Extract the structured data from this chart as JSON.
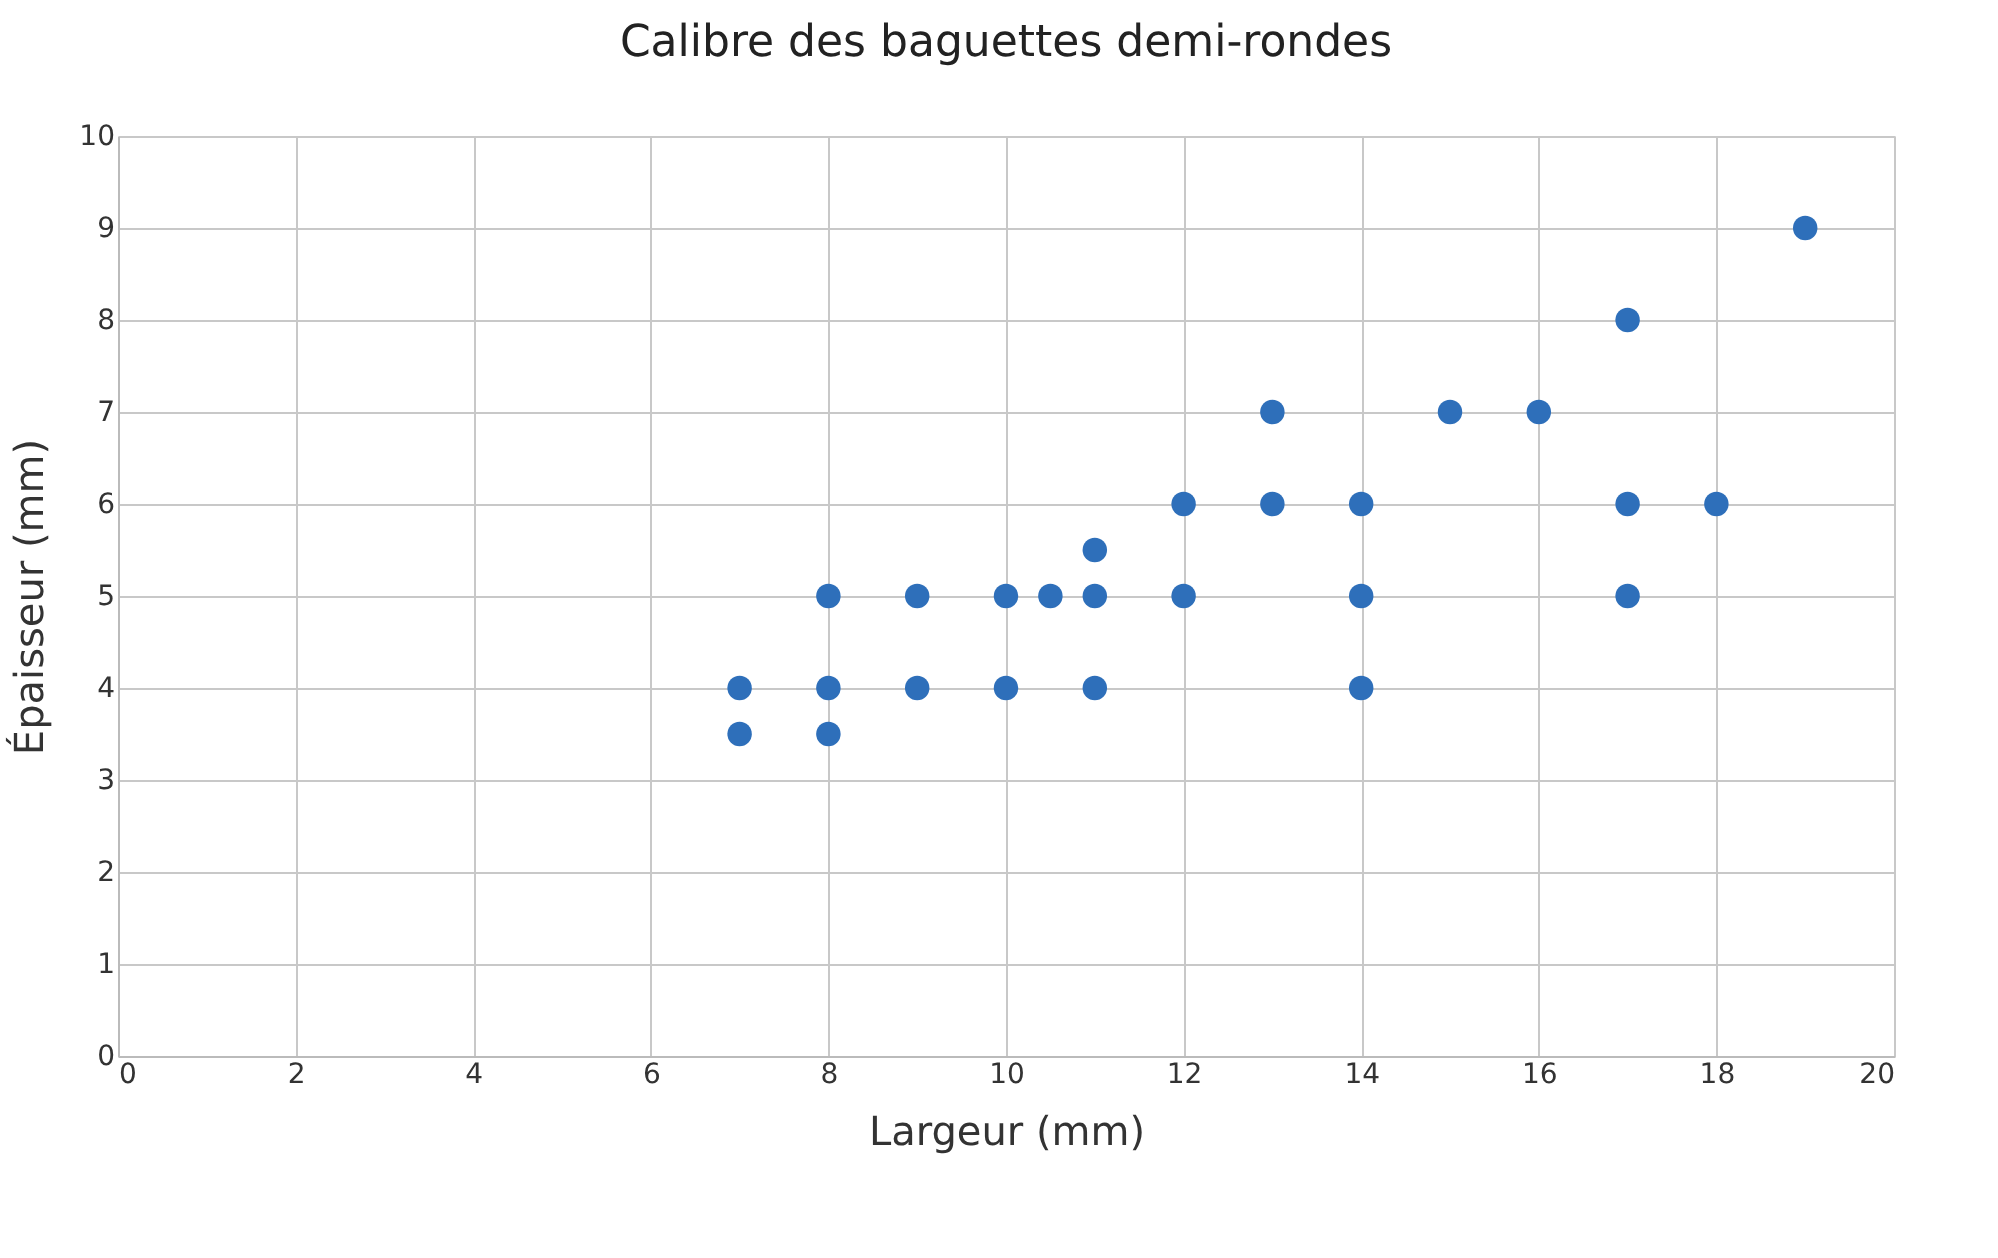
{
  "chart_data": {
    "type": "scatter",
    "title": "Calibre des baguettes demi-rondes",
    "xlabel": "Largeur (mm)",
    "ylabel": "Épaisseur (mm)",
    "x": [
      7,
      7,
      8,
      8,
      8,
      9,
      9,
      10,
      10,
      10.5,
      11,
      11,
      11,
      12,
      12,
      13,
      13,
      14,
      14,
      14,
      15,
      16,
      17,
      17,
      17,
      18,
      19
    ],
    "series": [
      {
        "color": "#2e6fba",
        "values": [
          4,
          3.5,
          5,
          4,
          3.5,
          5,
          4,
          5,
          4,
          5,
          5.5,
          5,
          4,
          6,
          5,
          7,
          6,
          6,
          5,
          4,
          7,
          7,
          8,
          6,
          5,
          6,
          9
        ]
      }
    ],
    "xlim": [
      0,
      20
    ],
    "xticks": [
      0,
      2,
      4,
      6,
      8,
      10,
      12,
      14,
      16,
      18,
      20
    ],
    "ylim": [
      0,
      10
    ],
    "yticks": [
      0,
      1,
      2,
      3,
      4,
      5,
      6,
      7,
      8,
      9,
      10
    ],
    "grid": true,
    "marker": "circle"
  }
}
